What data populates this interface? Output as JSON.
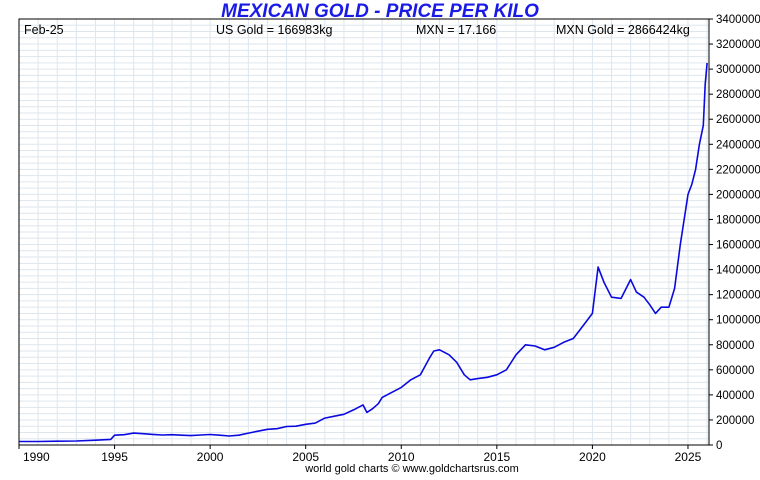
{
  "chart_data": {
    "type": "line",
    "title": "MEXICAN GOLD - PRICE PER KILO",
    "title_color": "#1a1ae6",
    "line_color": "#0a0ae0",
    "grid_color": "#dde6ee",
    "info": {
      "date": "Feb-25",
      "us_gold": "US Gold = 166983kg",
      "mxn_rate": "MXN = 17.166",
      "mxn_gold": "MXN Gold = 2866424kg"
    },
    "footer": "world gold charts © www.goldchartsrus.com",
    "x_ticks": [
      "1990",
      "1995",
      "2000",
      "2005",
      "2010",
      "2015",
      "2020",
      "2025"
    ],
    "y_ticks": [
      "0",
      "200000",
      "400000",
      "600000",
      "800000",
      "1000000",
      "1200000",
      "1400000",
      "1600000",
      "1800000",
      "2000000",
      "2200000",
      "2400000",
      "2600000",
      "2800000",
      "3000000",
      "3200000",
      "3400000"
    ],
    "xlim": [
      1990,
      2026.1
    ],
    "ylim": [
      0,
      3400000
    ],
    "grid": true,
    "y_axis_side": "right",
    "series": [
      {
        "x": [
          1990.0,
          1991.0,
          1992.0,
          1993.0,
          1994.0,
          1994.8,
          1995.0,
          1995.5,
          1996.0,
          1996.5,
          1997.0,
          1997.5,
          1998.0,
          1998.5,
          1999.0,
          1999.5,
          2000.0,
          2000.5,
          2001.0,
          2001.5,
          2002.0,
          2002.5,
          2003.0,
          2003.5,
          2004.0,
          2004.5,
          2005.0,
          2005.5,
          2006.0,
          2006.5,
          2007.0,
          2007.5,
          2008.0,
          2008.2,
          2008.5,
          2008.8,
          2009.0,
          2009.5,
          2010.0,
          2010.5,
          2011.0,
          2011.5,
          2011.7,
          2012.0,
          2012.5,
          2012.9,
          2013.3,
          2013.6,
          2014.0,
          2014.5,
          2015.0,
          2015.5,
          2016.0,
          2016.5,
          2017.0,
          2017.5,
          2018.0,
          2018.5,
          2019.0,
          2019.5,
          2020.0,
          2020.3,
          2020.6,
          2021.0,
          2021.5,
          2022.0,
          2022.3,
          2022.7,
          2023.0,
          2023.3,
          2023.6,
          2024.0,
          2024.3,
          2024.6,
          2024.9,
          2025.0,
          2025.2,
          2025.4,
          2025.6,
          2025.8,
          2025.9,
          2026.0
        ],
        "values": [
          28000,
          28000,
          30000,
          32000,
          38000,
          45000,
          78000,
          82000,
          95000,
          90000,
          85000,
          80000,
          82000,
          78000,
          75000,
          80000,
          84000,
          78000,
          72000,
          78000,
          95000,
          110000,
          125000,
          130000,
          148000,
          150000,
          165000,
          175000,
          215000,
          230000,
          245000,
          280000,
          320000,
          260000,
          290000,
          330000,
          380000,
          420000,
          460000,
          520000,
          560000,
          700000,
          750000,
          760000,
          720000,
          660000,
          560000,
          520000,
          530000,
          540000,
          560000,
          600000,
          720000,
          800000,
          790000,
          760000,
          780000,
          820000,
          850000,
          950000,
          1050000,
          1420000,
          1300000,
          1180000,
          1170000,
          1320000,
          1220000,
          1180000,
          1120000,
          1050000,
          1100000,
          1100000,
          1250000,
          1600000,
          1900000,
          2000000,
          2080000,
          2200000,
          2400000,
          2550000,
          2880000,
          3050000
        ]
      }
    ]
  }
}
